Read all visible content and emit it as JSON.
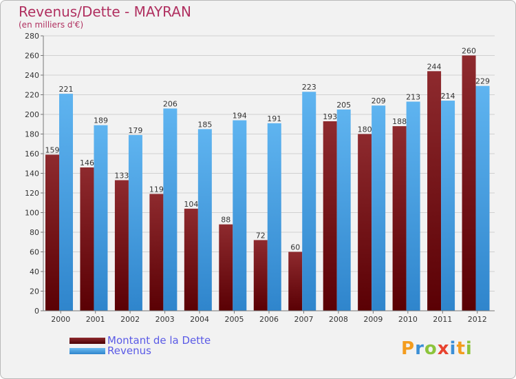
{
  "header": {
    "title": "Revenus/Dette - MAYRAN",
    "subtitle": "(en milliers d'€)"
  },
  "legend": {
    "items": [
      {
        "label": "Montant de la Dette",
        "color": "#6b0c10"
      },
      {
        "label": "Revenus",
        "color": "#4aa3e8"
      }
    ]
  },
  "logo": {
    "text": "Proxiti",
    "letters": [
      {
        "ch": "P",
        "color": "#f39c1e"
      },
      {
        "ch": "r",
        "color": "#3b8fd6"
      },
      {
        "ch": "o",
        "color": "#8cc43c"
      },
      {
        "ch": "x",
        "color": "#e8432f"
      },
      {
        "ch": "i",
        "color": "#3b8fd6"
      },
      {
        "ch": "t",
        "color": "#f39c1e"
      },
      {
        "ch": "i",
        "color": "#8cc43c"
      }
    ]
  },
  "chart_data": {
    "type": "bar",
    "title": "Revenus/Dette - MAYRAN",
    "subtitle": "(en milliers d'€)",
    "categories": [
      "2000",
      "2001",
      "2002",
      "2003",
      "2004",
      "2005",
      "2006",
      "2007",
      "2008",
      "2009",
      "2010",
      "2011",
      "2012"
    ],
    "series": [
      {
        "name": "Montant de la Dette",
        "color": "#6b0c10",
        "values": [
          159,
          146,
          133,
          119,
          104,
          88,
          72,
          60,
          193,
          180,
          188,
          244,
          260
        ]
      },
      {
        "name": "Revenus",
        "color": "#4aa3e8",
        "values": [
          221,
          189,
          179,
          206,
          185,
          194,
          191,
          223,
          205,
          209,
          213,
          214,
          229
        ]
      }
    ],
    "ylim": [
      0,
      280
    ],
    "yticks": [
      0,
      20,
      40,
      60,
      80,
      100,
      120,
      140,
      160,
      180,
      200,
      220,
      240,
      260,
      280
    ],
    "grid": true,
    "legend_position": "bottom-left"
  }
}
